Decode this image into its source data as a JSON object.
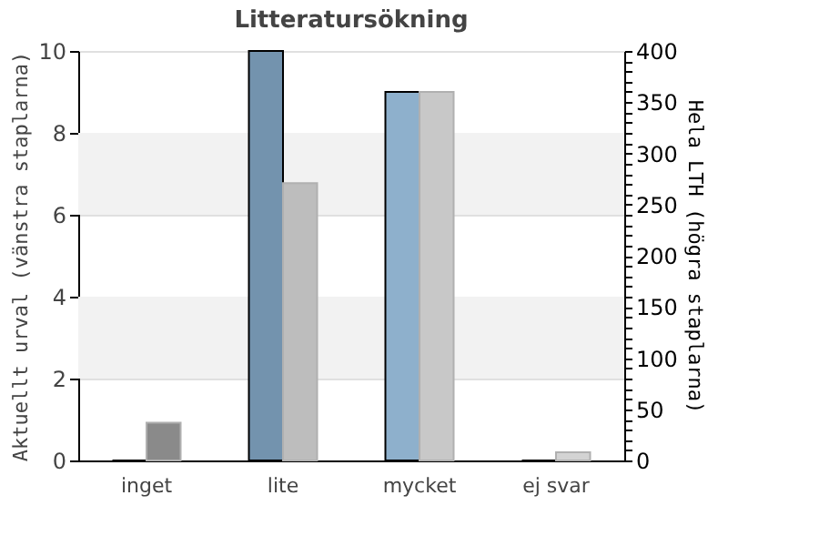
{
  "chart_data": {
    "type": "bar",
    "title": "Litteratursökning",
    "categories": [
      "inget",
      "lite",
      "mycket",
      "ej svar"
    ],
    "ylabel": "Aktuellt urval (vänstra staplarna)",
    "y2label": "Hela LTH (högra staplarna)",
    "series": [
      {
        "colors": [
          "#7393ae",
          "#7393ae",
          "#8eb0cc",
          "#8eb0cc"
        ],
        "values": [
          0,
          10,
          9,
          0
        ]
      },
      {
        "axis": "y2",
        "colors": [
          "#8a8a8a",
          "#bdbdbd",
          "#c8c8c8",
          "#d3d3d3"
        ],
        "values": [
          37,
          271,
          360,
          8
        ]
      }
    ],
    "ylim": [
      0,
      10
    ],
    "yticks": [
      0,
      2,
      4,
      6,
      8,
      10
    ],
    "y2lim": [
      0,
      400
    ],
    "y2ticks": [
      0,
      {
        "value": 10,
        "label": null
      },
      {
        "value": 20,
        "label": null
      },
      {
        "value": 30,
        "label": null
      },
      {
        "value": 40,
        "label": null
      },
      50,
      {
        "value": 60,
        "label": null
      },
      {
        "value": 70,
        "label": null
      },
      {
        "value": 80,
        "label": null
      },
      {
        "value": 90,
        "label": null
      },
      100,
      {
        "value": 110,
        "label": null
      },
      {
        "value": 120,
        "label": null
      },
      {
        "value": 130,
        "label": null
      },
      {
        "value": 140,
        "label": null
      },
      150,
      {
        "value": 160,
        "label": null
      },
      {
        "value": 170,
        "label": null
      },
      {
        "value": 180,
        "label": null
      },
      {
        "value": 190,
        "label": null
      },
      200,
      {
        "value": 210,
        "label": null
      },
      {
        "value": 220,
        "label": null
      },
      {
        "value": 230,
        "label": null
      },
      {
        "value": 240,
        "label": null
      },
      250,
      {
        "value": 260,
        "label": null
      },
      {
        "value": 270,
        "label": null
      },
      {
        "value": 280,
        "label": null
      },
      {
        "value": 290,
        "label": null
      },
      300,
      {
        "value": 310,
        "label": null
      },
      {
        "value": 320,
        "label": null
      },
      {
        "value": 330,
        "label": null
      },
      {
        "value": 340,
        "label": null
      },
      350,
      {
        "value": 360,
        "label": null
      },
      {
        "value": 370,
        "label": null
      },
      {
        "value": 380,
        "label": null
      },
      {
        "value": 390,
        "label": null
      },
      400
    ],
    "bands": [
      {
        "axis": "y",
        "from": 2,
        "to": 4,
        "color": "#f2f2f2"
      },
      {
        "axis": "y",
        "from": 6,
        "to": 8,
        "color": "#f2f2f2"
      }
    ],
    "grid": "y"
  }
}
